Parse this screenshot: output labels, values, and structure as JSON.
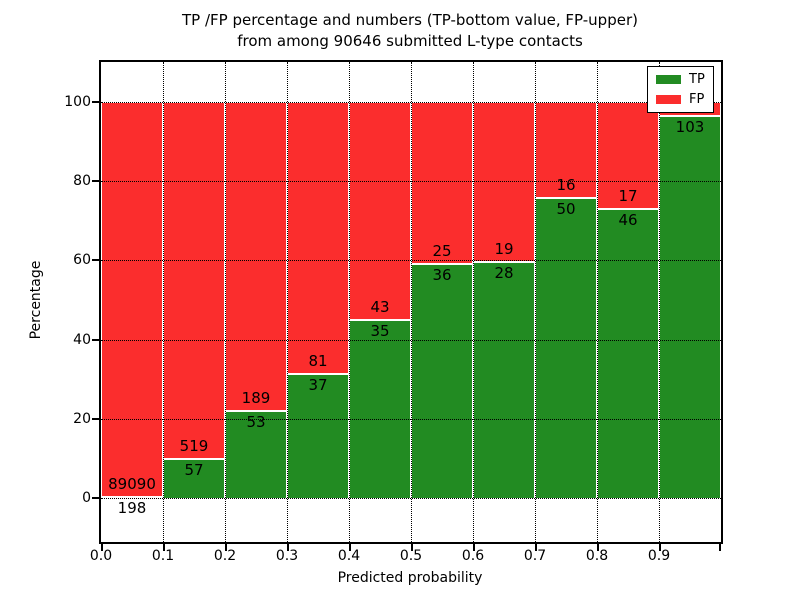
{
  "figure": {
    "title_line1": "TP /FP percentage and numbers (TP-bottom value, FP-upper)",
    "title_line2": "from among 90646 submitted L-type contacts",
    "xlabel": "Predicted probability",
    "ylabel": "Percentage"
  },
  "legend": {
    "items": [
      {
        "label": "TP",
        "color": "#228b22"
      },
      {
        "label": "FP",
        "color": "#fb2d2d"
      }
    ]
  },
  "chart_data": {
    "type": "bar",
    "stacked": true,
    "title": "TP /FP percentage and numbers (TP-bottom value, FP-upper) from among 90646 submitted L-type contacts",
    "xlabel": "Predicted probability",
    "ylabel": "Percentage",
    "total_submitted_contacts": 90646,
    "grid": true,
    "legend_position": "upper right",
    "xlim": [
      0.0,
      1.0
    ],
    "ylim": [
      -11,
      110
    ],
    "y_ticks": [
      0,
      20,
      40,
      60,
      80,
      100
    ],
    "y_tick_labels": [
      "0",
      "20",
      "40",
      "60",
      "80",
      "100"
    ],
    "x_tick_labels": [
      "0.0",
      "0.1",
      "0.2",
      "0.3",
      "0.4",
      "0.5",
      "0.6",
      "0.7",
      "0.8",
      "0.9"
    ],
    "series_colors": {
      "tp": "#228b22",
      "fp": "#fb2d2d"
    },
    "bins": [
      {
        "range": [
          0.0,
          0.1
        ],
        "tp": 198,
        "fp": 89090,
        "tp_pct": 0.22,
        "tp_label": "198",
        "fp_label": "89090"
      },
      {
        "range": [
          0.1,
          0.2
        ],
        "tp": 57,
        "fp": 519,
        "tp_pct": 9.9,
        "tp_label": "57",
        "fp_label": "519"
      },
      {
        "range": [
          0.2,
          0.3
        ],
        "tp": 53,
        "fp": 189,
        "tp_pct": 21.9,
        "tp_label": "53",
        "fp_label": "189"
      },
      {
        "range": [
          0.3,
          0.4
        ],
        "tp": 37,
        "fp": 81,
        "tp_pct": 31.4,
        "tp_label": "37",
        "fp_label": "81"
      },
      {
        "range": [
          0.4,
          0.5
        ],
        "tp": 35,
        "fp": 43,
        "tp_pct": 44.9,
        "tp_label": "35",
        "fp_label": "43"
      },
      {
        "range": [
          0.5,
          0.6
        ],
        "tp": 36,
        "fp": 25,
        "tp_pct": 59.0,
        "tp_label": "36",
        "fp_label": "25"
      },
      {
        "range": [
          0.6,
          0.7
        ],
        "tp": 28,
        "fp": 19,
        "tp_pct": 59.6,
        "tp_label": "28",
        "fp_label": "19"
      },
      {
        "range": [
          0.7,
          0.8
        ],
        "tp": 50,
        "fp": 16,
        "tp_pct": 75.8,
        "tp_label": "50",
        "fp_label": "16"
      },
      {
        "range": [
          0.8,
          0.9
        ],
        "tp": 46,
        "fp": 17,
        "tp_pct": 73.0,
        "tp_label": "46",
        "fp_label": "17"
      },
      {
        "range": [
          0.9,
          1.0
        ],
        "tp": 103,
        "fp": null,
        "tp_pct": 96.4,
        "tp_label": "103",
        "fp_label": ""
      }
    ]
  }
}
